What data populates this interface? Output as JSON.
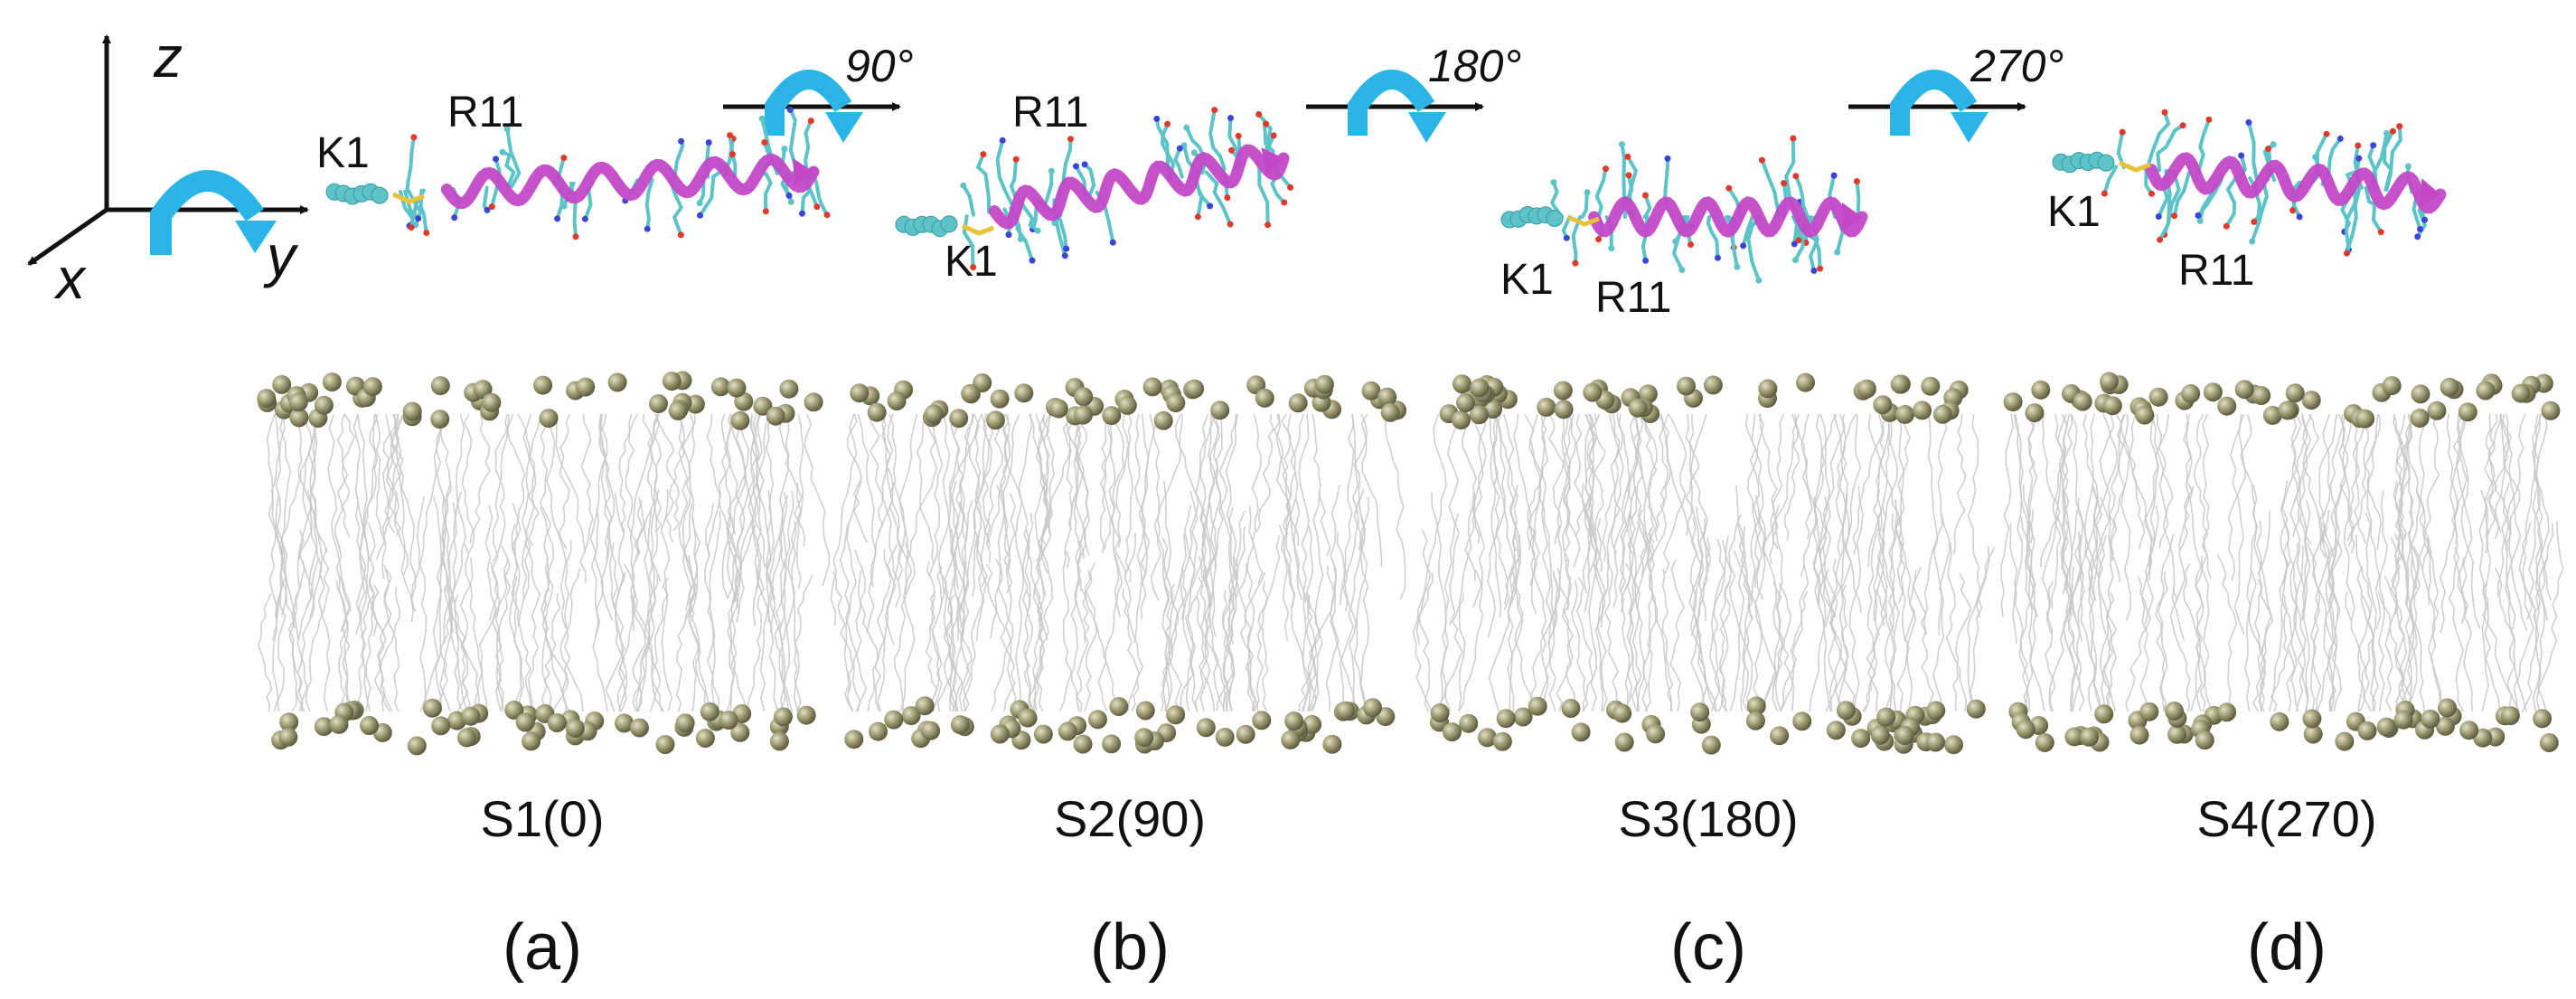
{
  "axes": {
    "z": "z",
    "y": "y",
    "x": "x"
  },
  "rotations": [
    {
      "angle_label": "90°"
    },
    {
      "angle_label": "180°"
    },
    {
      "angle_label": "270°"
    }
  ],
  "peptides": [
    {
      "n_term": "K1",
      "residue": "R11"
    },
    {
      "n_term": "K1",
      "residue": "R11"
    },
    {
      "n_term": "K1",
      "residue": "R11"
    },
    {
      "n_term": "K1",
      "residue": "R11"
    }
  ],
  "panels": [
    {
      "system": "S1(0)",
      "label": "(a)"
    },
    {
      "system": "S2(90)",
      "label": "(b)"
    },
    {
      "system": "S3(180)",
      "label": "(c)"
    },
    {
      "system": "S4(270)",
      "label": "(d)"
    }
  ],
  "colors": {
    "helix": "#c248c8",
    "sidechain": "#5cc3c8",
    "oxygen": "#e03a2a",
    "nitrogen": "#3a45d8",
    "sulfur": "#e8c23a",
    "rotation_arrow": "#2bb4e6",
    "phosphate": "#9b9870",
    "lipid_tail": "#c8c8c8"
  }
}
